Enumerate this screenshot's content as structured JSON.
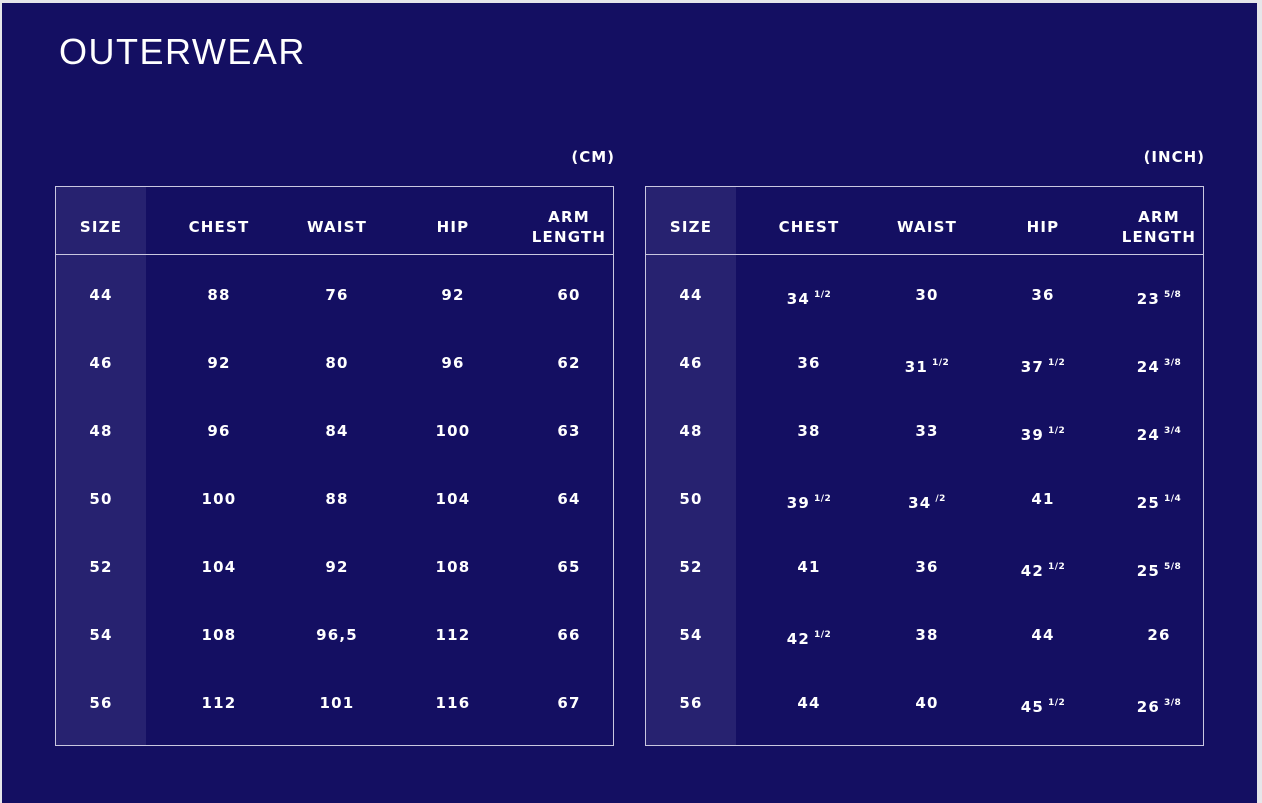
{
  "title": "OUTERWEAR",
  "colors": {
    "background": "#140f62",
    "size_column": "#272270",
    "border": "#c9c7e0",
    "text": "#ffffff"
  },
  "headers": [
    "SIZE",
    "CHEST",
    "WAIST",
    "HIP",
    "ARM LENGTH"
  ],
  "cm_table": {
    "unit": "(CM)",
    "rows": [
      [
        "44",
        "88",
        "76",
        "92",
        "60"
      ],
      [
        "46",
        "92",
        "80",
        "96",
        "62"
      ],
      [
        "48",
        "96",
        "84",
        "100",
        "63"
      ],
      [
        "50",
        "100",
        "88",
        "104",
        "64"
      ],
      [
        "52",
        "104",
        "92",
        "108",
        "65"
      ],
      [
        "54",
        "108",
        "96,5",
        "112",
        "66"
      ],
      [
        "56",
        "112",
        "101",
        "116",
        "67"
      ]
    ]
  },
  "inch_table": {
    "unit": "(INCH)",
    "rows": [
      [
        {
          "w": "44"
        },
        {
          "w": "34",
          "f": "1/2"
        },
        {
          "w": "30"
        },
        {
          "w": "36"
        },
        {
          "w": "23",
          "f": "5/8"
        }
      ],
      [
        {
          "w": "46"
        },
        {
          "w": "36"
        },
        {
          "w": "31",
          "f": "1/2"
        },
        {
          "w": "37",
          "f": "1/2"
        },
        {
          "w": "24",
          "f": "3/8"
        }
      ],
      [
        {
          "w": "48"
        },
        {
          "w": "38"
        },
        {
          "w": "33"
        },
        {
          "w": "39",
          "f": "1/2"
        },
        {
          "w": "24",
          "f": "3/4"
        }
      ],
      [
        {
          "w": "50"
        },
        {
          "w": "39",
          "f": "1/2"
        },
        {
          "w": "34",
          "f": "/2"
        },
        {
          "w": "41"
        },
        {
          "w": "25",
          "f": "1/4"
        }
      ],
      [
        {
          "w": "52"
        },
        {
          "w": "41"
        },
        {
          "w": "36"
        },
        {
          "w": "42",
          "f": "1/2"
        },
        {
          "w": "25",
          "f": "5/8"
        }
      ],
      [
        {
          "w": "54"
        },
        {
          "w": "42",
          "f": "1/2"
        },
        {
          "w": "38"
        },
        {
          "w": "44"
        },
        {
          "w": "26"
        }
      ],
      [
        {
          "w": "56"
        },
        {
          "w": "44"
        },
        {
          "w": "40"
        },
        {
          "w": "45",
          "f": "1/2"
        },
        {
          "w": "26",
          "f": "3/8"
        }
      ]
    ]
  }
}
